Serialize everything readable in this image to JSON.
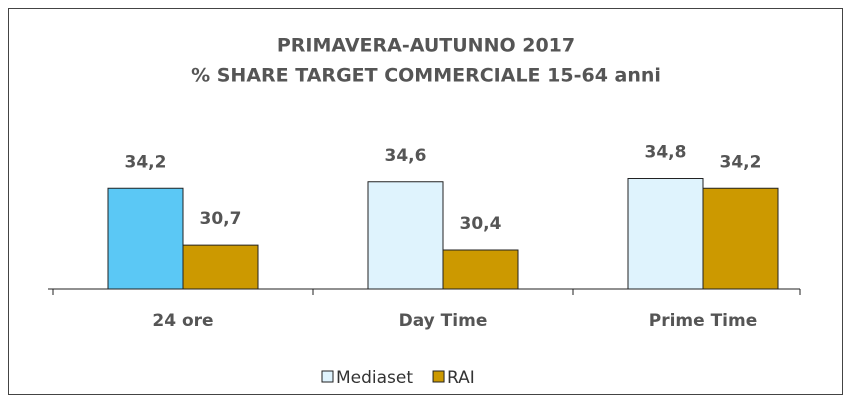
{
  "chart_data": {
    "type": "bar",
    "title": "PRIMAVERA-AUTUNNO 2017",
    "subtitle": "% SHARE TARGET COMMERCIALE 15-64 anni",
    "categories": [
      "24 ore",
      "Day Time",
      "Prime Time"
    ],
    "series": [
      {
        "name": "Mediaset",
        "color": "#dff3fd",
        "colors": [
          "#5bc8f5",
          "#dff3fd",
          "#dff3fd"
        ],
        "values": [
          34.2,
          34.6,
          34.8
        ],
        "value_labels": [
          "34,2",
          "34,6",
          "34,8"
        ]
      },
      {
        "name": "RAI",
        "color": "#cc9900",
        "values": [
          30.7,
          30.4,
          34.2
        ],
        "value_labels": [
          "30,7",
          "30,4",
          "34,2"
        ]
      }
    ],
    "ylim": [
      28,
      36
    ]
  }
}
